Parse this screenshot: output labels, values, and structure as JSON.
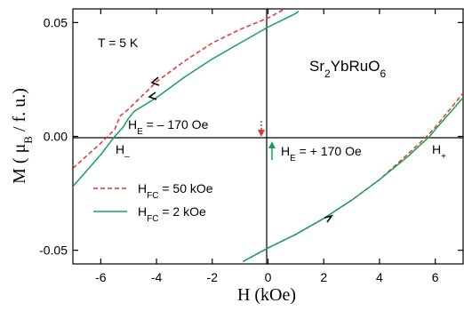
{
  "chart_data": {
    "type": "line",
    "xlabel": "H (kOe)",
    "ylabel": "M ( μB / f. u.)",
    "xlim": [
      -7,
      7
    ],
    "ylim": [
      -0.056,
      0.056
    ],
    "x_ticks": [
      "-6",
      "-4",
      "-2",
      "0",
      "2",
      "4",
      "6"
    ],
    "y_ticks": [
      "-0.05",
      "0.00",
      "0.05"
    ],
    "annotations": {
      "temperature": "T = 5 K",
      "compound": "Sr2YbRuO6",
      "he_minus": "HE = – 170 Oe",
      "he_plus": "HE = + 170 Oe",
      "h_minus": "H–",
      "h_plus": "H+"
    },
    "series": [
      {
        "name": "HFC = 50 kOe",
        "color": "#e8332f",
        "dash": "dashed",
        "upper_branch": {
          "x": [
            -7.0,
            -6.0,
            -5.5,
            -5.3,
            -5.0,
            -4.5,
            -4.0,
            -3.0,
            -2.0,
            -1.0,
            0.0,
            0.6
          ],
          "y": [
            -0.014,
            -0.003,
            0.003,
            0.009,
            0.012,
            0.018,
            0.024,
            0.033,
            0.041,
            0.047,
            0.052,
            0.056
          ]
        },
        "lower_branch": {
          "x": [
            -0.9,
            0.0,
            1.0,
            2.0,
            3.0,
            4.0,
            5.0,
            5.7,
            6.0,
            7.0
          ],
          "y": [
            -0.055,
            -0.049,
            -0.043,
            -0.036,
            -0.028,
            -0.019,
            -0.008,
            0.0,
            0.004,
            0.019
          ]
        }
      },
      {
        "name": "HFC = 2 kOe",
        "color": "#16a05a",
        "dash": "solid",
        "upper_branch": {
          "x": [
            -7.0,
            -6.0,
            -5.5,
            -5.2,
            -5.0,
            -4.8,
            -4.0,
            -3.0,
            -2.0,
            -1.0,
            0.0,
            1.0,
            1.1
          ],
          "y": [
            -0.022,
            -0.008,
            0.0,
            0.004,
            0.008,
            0.011,
            0.017,
            0.026,
            0.034,
            0.041,
            0.048,
            0.054,
            0.055
          ]
        },
        "lower_branch": {
          "x": [
            -0.9,
            0.0,
            1.0,
            2.0,
            3.0,
            4.0,
            5.0,
            5.8,
            6.0,
            7.0
          ],
          "y": [
            -0.055,
            -0.049,
            -0.043,
            -0.036,
            -0.028,
            -0.019,
            -0.009,
            0.0,
            0.003,
            0.017
          ]
        }
      }
    ],
    "legend": {
      "position": "bottom-left",
      "entries": [
        "HFC = 50 kOe",
        "HFC = 2 kOe"
      ]
    }
  }
}
